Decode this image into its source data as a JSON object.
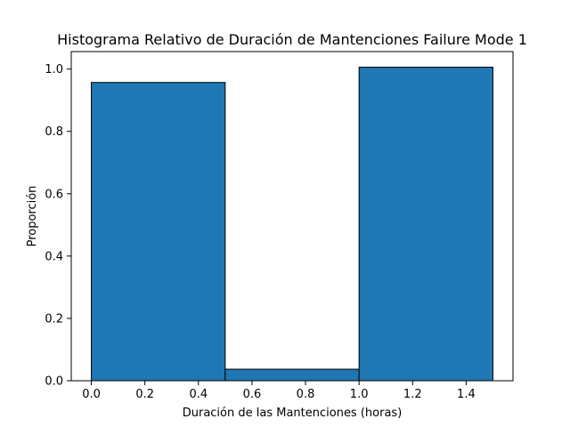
{
  "chart_data": {
    "type": "bar",
    "title": "Histograma Relativo de Duración de Mantenciones Failure Mode 1",
    "xlabel": "Duración de las Mantenciones (horas)",
    "ylabel": "Proporción",
    "bins": [
      {
        "x0": 0.0,
        "x1": 0.5,
        "value": 0.957
      },
      {
        "x0": 0.5,
        "x1": 1.0,
        "value": 0.037
      },
      {
        "x0": 1.0,
        "x1": 1.5,
        "value": 1.006
      }
    ],
    "xlim": [
      -0.075,
      1.575
    ],
    "ylim": [
      0,
      1.056
    ],
    "xticks": [
      0.0,
      0.2,
      0.4,
      0.6,
      0.8,
      1.0,
      1.2,
      1.4
    ],
    "xtick_labels": [
      "0.0",
      "0.2",
      "0.4",
      "0.6",
      "0.8",
      "1.0",
      "1.2",
      "1.4"
    ],
    "yticks": [
      0.0,
      0.2,
      0.4,
      0.6,
      0.8,
      1.0
    ],
    "ytick_labels": [
      "0.0",
      "0.2",
      "0.4",
      "0.6",
      "0.8",
      "1.0"
    ],
    "bar_color": "#1f77b4",
    "edge_color": "#000000",
    "grid": false,
    "legend": "none"
  }
}
